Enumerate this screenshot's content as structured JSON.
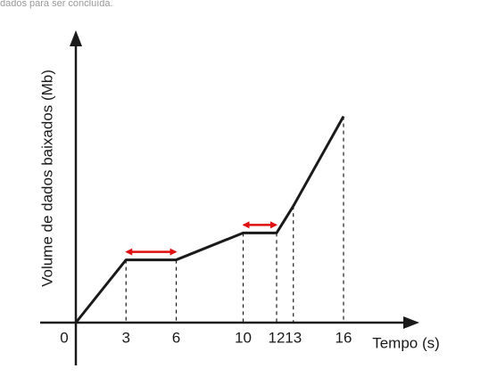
{
  "chart_data": {
    "type": "line",
    "note": "dados para ser concluída.",
    "xlabel": "Tempo (s)",
    "ylabel": "Volume de dados baixados (Mb)",
    "x": [
      0,
      3,
      6,
      10,
      12,
      13,
      16
    ],
    "y": [
      0,
      7,
      7,
      10,
      10,
      13,
      23
    ],
    "xlim": [
      0,
      20
    ],
    "ylim": [
      0,
      32
    ],
    "xticks": [
      0,
      3,
      6,
      10,
      12,
      13,
      16
    ],
    "color": "#1a1a1a"
  }
}
